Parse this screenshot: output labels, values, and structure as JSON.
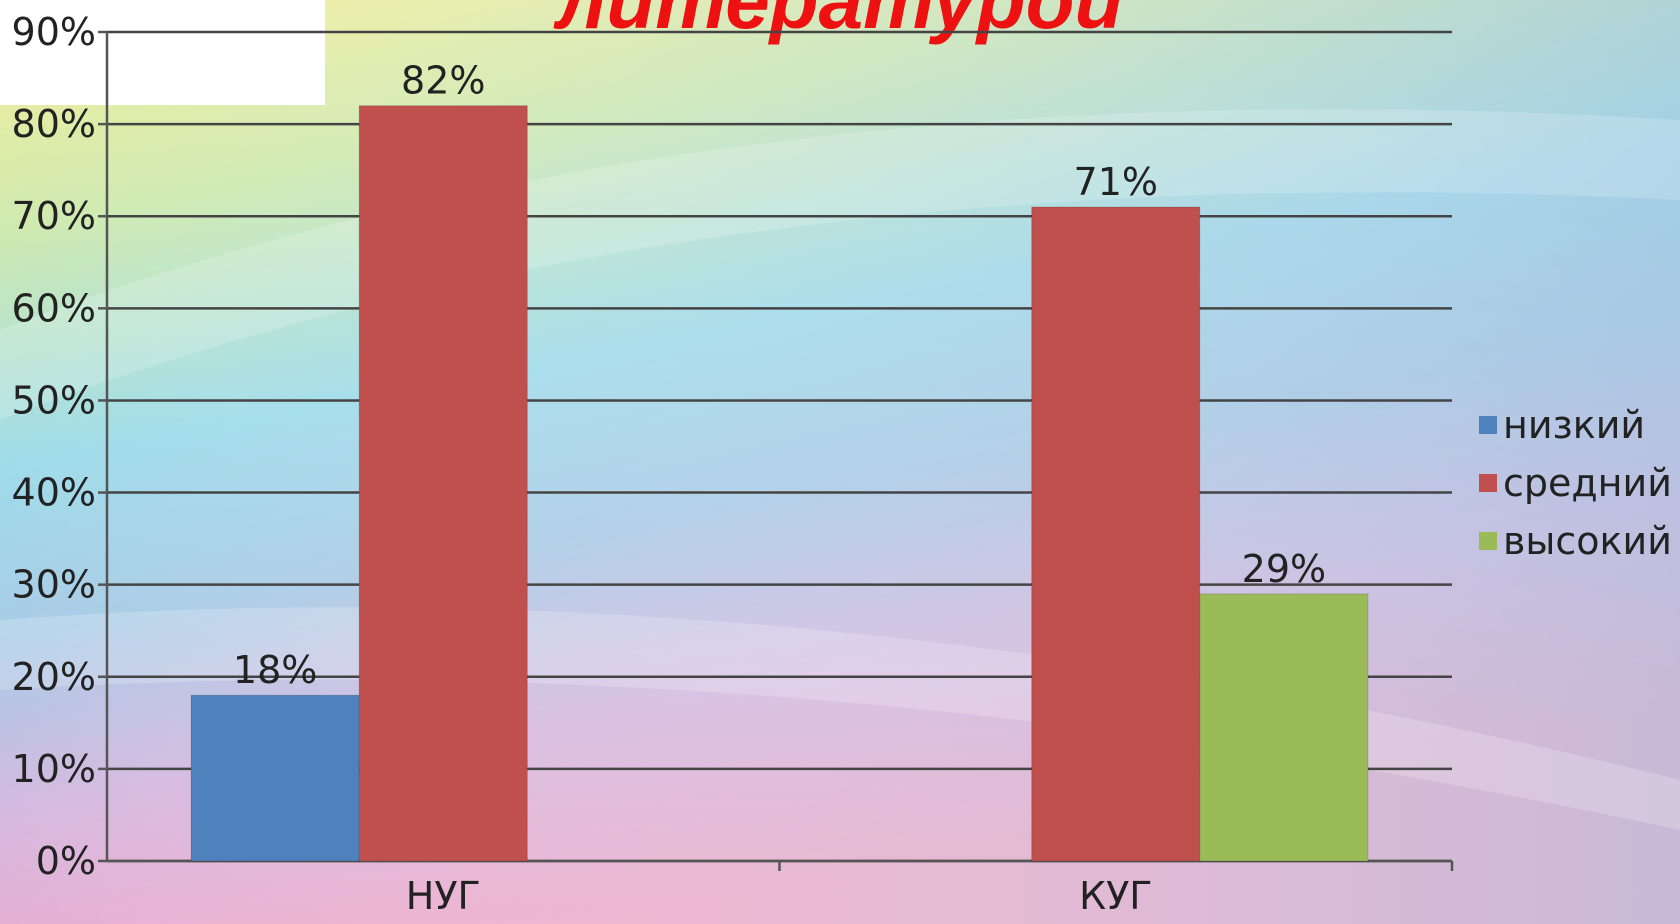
{
  "chart_data": {
    "type": "bar",
    "title": "литературой",
    "categories": [
      "НУГ",
      "КУГ"
    ],
    "series": [
      {
        "name": "низкий",
        "color": "#4f81bd",
        "values": [
          18,
          null
        ],
        "value_labels": [
          "18%",
          null
        ]
      },
      {
        "name": "средний",
        "color": "#c0504d",
        "values": [
          82,
          71
        ],
        "value_labels": [
          "82%",
          "71%"
        ]
      },
      {
        "name": "высокий",
        "color": "#9bbb59",
        "values": [
          null,
          29
        ],
        "value_labels": [
          null,
          "29%"
        ]
      }
    ],
    "ylim": [
      0,
      90
    ],
    "yticks": [
      {
        "value": 0,
        "label": "0%"
      },
      {
        "value": 10,
        "label": "10%"
      },
      {
        "value": 20,
        "label": "20%"
      },
      {
        "value": 30,
        "label": "30%"
      },
      {
        "value": 40,
        "label": "40%"
      },
      {
        "value": 50,
        "label": "50%"
      },
      {
        "value": 60,
        "label": "60%"
      },
      {
        "value": 70,
        "label": "70%"
      },
      {
        "value": 80,
        "label": "80%"
      },
      {
        "value": 90,
        "label": "90%"
      }
    ],
    "grid": true,
    "legend": "right"
  }
}
